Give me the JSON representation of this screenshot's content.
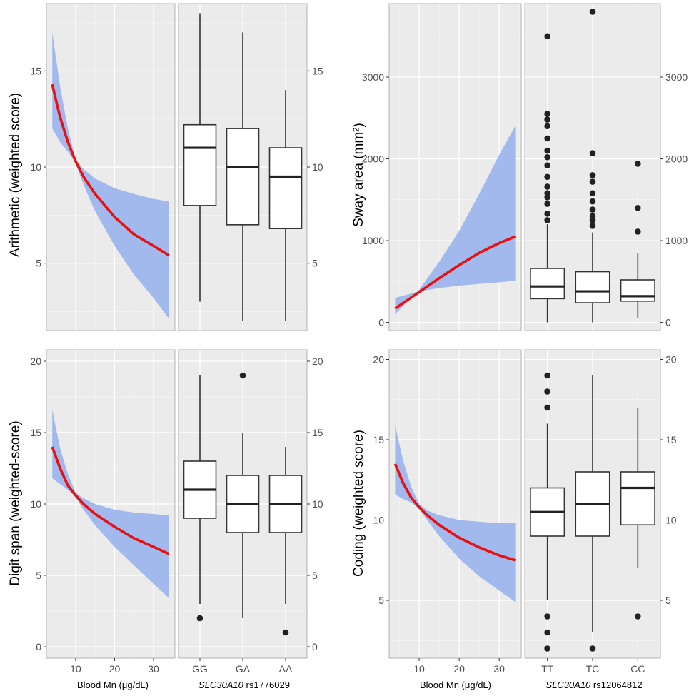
{
  "figure": {
    "xlab_left": "Blood Mn (μg/dL)",
    "xlab_right": "Blood Mn (μg/dL)",
    "gene_left": "SLC30A10",
    "snp_left": " rs1776029",
    "gene_right": "SLC30A10",
    "snp_right": " rs12064812"
  },
  "colors": {
    "fit": "#e8110f",
    "band": "#a2b9ee",
    "panel": "#ebebeb",
    "grid_major": "#ffffff"
  },
  "chart_data": [
    {
      "id": "arith",
      "type": "line",
      "ylabel": "Arithmetic (weighted score)",
      "ylim": [
        1.5,
        18.5
      ],
      "yticks": [
        5,
        10,
        15
      ],
      "xlim": [
        2.5,
        35.5
      ],
      "xticks": [
        10,
        20,
        30
      ],
      "show_xticks": false,
      "fit": {
        "x": [
          4,
          6,
          8,
          10,
          12,
          15,
          20,
          25,
          30,
          34
        ],
        "y": [
          14.3,
          12.6,
          11.3,
          10.3,
          9.5,
          8.6,
          7.4,
          6.5,
          5.9,
          5.4
        ]
      },
      "band_upper": {
        "x": [
          4,
          6,
          8,
          10,
          12,
          15,
          20,
          25,
          30,
          34
        ],
        "y": [
          17.0,
          14.2,
          12.0,
          10.4,
          9.9,
          9.4,
          8.9,
          8.6,
          8.35,
          8.2
        ]
      },
      "band_lower": {
        "x": [
          4,
          6,
          8,
          10,
          12,
          15,
          20,
          25,
          30,
          34
        ],
        "y": [
          12.0,
          11.3,
          10.8,
          10.2,
          9.1,
          7.7,
          5.9,
          4.4,
          3.2,
          2.1
        ]
      },
      "box": {
        "categories": [
          "GG",
          "GA",
          "AA"
        ],
        "show_xticks": false,
        "stats": [
          {
            "min": 3,
            "q1": 8,
            "median": 11,
            "q3": 12.2,
            "max": 18,
            "outliers": []
          },
          {
            "min": 2,
            "q1": 7,
            "median": 10,
            "q3": 12,
            "max": 17,
            "outliers": []
          },
          {
            "min": 2,
            "q1": 6.8,
            "median": 9.5,
            "q3": 11,
            "max": 14,
            "outliers": []
          }
        ]
      }
    },
    {
      "id": "sway",
      "type": "line",
      "ylabel": "Sway area (mm²)",
      "ylim": [
        -100,
        3900
      ],
      "yticks": [
        0,
        1000,
        2000,
        3000
      ],
      "xlim": [
        2.5,
        35.5
      ],
      "xticks": [
        10,
        20,
        30
      ],
      "show_xticks": false,
      "fit": {
        "x": [
          4,
          10,
          15,
          20,
          25,
          30,
          34
        ],
        "y": [
          170,
          370,
          540,
          700,
          850,
          970,
          1050
        ]
      },
      "band_upper": {
        "x": [
          4,
          10,
          15,
          20,
          25,
          30,
          34
        ],
        "y": [
          100,
          400,
          740,
          1120,
          1570,
          2050,
          2400
        ]
      },
      "band_lower": {
        "x": [
          4,
          10,
          15,
          20,
          25,
          30,
          34
        ],
        "y": [
          300,
          380,
          420,
          450,
          470,
          490,
          510
        ]
      },
      "box": {
        "categories": [
          "TT",
          "TC",
          "CC"
        ],
        "show_xticks": false,
        "stats": [
          {
            "min": 0,
            "q1": 290,
            "median": 440,
            "q3": 660,
            "max": 1200,
            "outliers": [
              1250,
              1330,
              1450,
              1530,
              1580,
              1660,
              1780,
              1920,
              2020,
              2100,
              2250,
              2400,
              2480,
              2550,
              3500
            ]
          },
          {
            "min": 0,
            "q1": 240,
            "median": 380,
            "q3": 620,
            "max": 1100,
            "outliers": [
              1180,
              1250,
              1300,
              1380,
              1480,
              1580,
              1720,
              1800,
              2070,
              3800
            ]
          },
          {
            "min": 50,
            "q1": 260,
            "median": 320,
            "q3": 520,
            "max": 850,
            "outliers": [
              1110,
              1400,
              1940
            ]
          }
        ]
      }
    },
    {
      "id": "digit",
      "type": "line",
      "ylabel": "Digit span (weighted-score)",
      "ylim": [
        -0.8,
        20.8
      ],
      "yticks": [
        0,
        5,
        10,
        15,
        20
      ],
      "xlim": [
        2.5,
        35.5
      ],
      "xticks": [
        10,
        20,
        30
      ],
      "show_xticks": true,
      "fit": {
        "x": [
          4,
          6,
          8,
          10,
          12,
          15,
          20,
          25,
          30,
          34
        ],
        "y": [
          14.0,
          12.5,
          11.3,
          10.6,
          10.0,
          9.3,
          8.4,
          7.6,
          7.0,
          6.5
        ]
      },
      "band_upper": {
        "x": [
          4,
          6,
          8,
          10,
          12,
          15,
          20,
          25,
          30,
          34
        ],
        "y": [
          16.6,
          13.9,
          12.1,
          10.8,
          10.4,
          10.0,
          9.6,
          9.4,
          9.3,
          9.2
        ]
      },
      "band_lower": {
        "x": [
          4,
          6,
          8,
          10,
          12,
          15,
          20,
          25,
          30,
          34
        ],
        "y": [
          11.8,
          11.4,
          11.0,
          10.5,
          9.6,
          8.5,
          7.0,
          5.7,
          4.4,
          3.4
        ]
      },
      "box": {
        "categories": [
          "GG",
          "GA",
          "AA"
        ],
        "show_xticks": true,
        "stats": [
          {
            "min": 3,
            "q1": 9,
            "median": 11,
            "q3": 13,
            "max": 19,
            "outliers": [
              2
            ]
          },
          {
            "min": 2,
            "q1": 8,
            "median": 10,
            "q3": 12,
            "max": 15,
            "outliers": [
              19
            ]
          },
          {
            "min": 3,
            "q1": 8,
            "median": 10,
            "q3": 12,
            "max": 14,
            "outliers": [
              1
            ]
          }
        ]
      }
    },
    {
      "id": "coding",
      "type": "line",
      "ylabel": "Coding (weighted score)",
      "ylim": [
        1.4,
        20.6
      ],
      "yticks": [
        5,
        10,
        15,
        20
      ],
      "xlim": [
        2.5,
        35.5
      ],
      "xticks": [
        10,
        20,
        30
      ],
      "show_xticks": true,
      "fit": {
        "x": [
          4,
          6,
          8,
          10,
          12,
          15,
          20,
          25,
          30,
          34
        ],
        "y": [
          13.5,
          12.3,
          11.4,
          10.8,
          10.3,
          9.7,
          8.9,
          8.3,
          7.8,
          7.5
        ]
      },
      "band_upper": {
        "x": [
          4,
          6,
          8,
          10,
          12,
          15,
          20,
          25,
          30,
          34
        ],
        "y": [
          15.9,
          13.7,
          12.1,
          11.0,
          10.6,
          10.3,
          10.0,
          9.9,
          9.8,
          9.8
        ]
      },
      "band_lower": {
        "x": [
          4,
          6,
          8,
          10,
          12,
          15,
          20,
          25,
          30,
          34
        ],
        "y": [
          11.6,
          11.3,
          11.1,
          10.7,
          10.0,
          9.0,
          7.6,
          6.5,
          5.6,
          4.9
        ]
      },
      "box": {
        "categories": [
          "TT",
          "TC",
          "CC"
        ],
        "show_xticks": true,
        "stats": [
          {
            "min": 5,
            "q1": 9,
            "median": 10.5,
            "q3": 12,
            "max": 16,
            "outliers": [
              2,
              3,
              4,
              17,
              18,
              19
            ]
          },
          {
            "min": 3,
            "q1": 9,
            "median": 11,
            "q3": 13,
            "max": 19,
            "outliers": [
              2
            ]
          },
          {
            "min": 7,
            "q1": 9.7,
            "median": 12,
            "q3": 13,
            "max": 17,
            "outliers": [
              4
            ]
          }
        ]
      }
    }
  ]
}
